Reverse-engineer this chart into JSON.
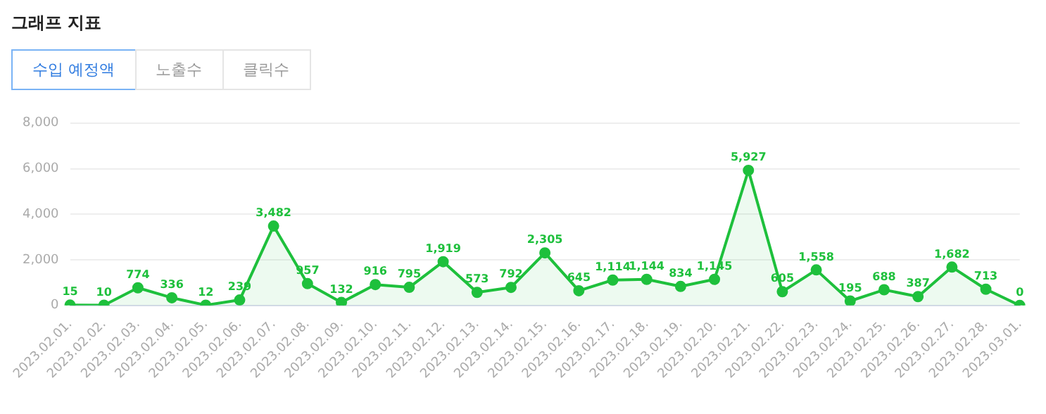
{
  "chart_data": {
    "type": "area",
    "title": "그래프 지표",
    "annotations": [
      "수입 예정액",
      "노출수",
      "클릭수"
    ],
    "categories": [
      "2023.02.01.",
      "2023.02.02.",
      "2023.02.03.",
      "2023.02.04.",
      "2023.02.05.",
      "2023.02.06.",
      "2023.02.07.",
      "2023.02.08.",
      "2023.02.09.",
      "2023.02.10.",
      "2023.02.11.",
      "2023.02.12.",
      "2023.02.13.",
      "2023.02.14.",
      "2023.02.15.",
      "2023.02.16.",
      "2023.02.17.",
      "2023.02.18.",
      "2023.02.19.",
      "2023.02.20.",
      "2023.02.21.",
      "2023.02.22.",
      "2023.02.23.",
      "2023.02.24.",
      "2023.02.25.",
      "2023.02.26.",
      "2023.02.27.",
      "2023.02.28.",
      "2023.03.01."
    ],
    "series": [
      {
        "color": "#1ec03c",
        "values": [
          15,
          10,
          774,
          336,
          12,
          239,
          3482,
          957,
          132,
          916,
          795,
          1919,
          573,
          792,
          2305,
          645,
          1114,
          1144,
          834,
          1145,
          5927,
          605,
          1558,
          195,
          688,
          387,
          1682,
          713,
          0
        ],
        "value_labels": [
          "15",
          "10",
          "774",
          "336",
          "12",
          "239",
          "3,482",
          "957",
          "132",
          "916",
          "795",
          "1,919",
          "573",
          "792",
          "2,305",
          "645",
          "1,114",
          "1,144",
          "834",
          "1,145",
          "5,927",
          "605",
          "1,558",
          "195",
          "688",
          "387",
          "1,682",
          "713",
          "0"
        ]
      }
    ],
    "ylim": [
      0,
      8000
    ],
    "yticks": [
      {
        "value": 0,
        "label": "0"
      },
      {
        "value": 2000,
        "label": "2,000"
      },
      {
        "value": 4000,
        "label": "4,000"
      },
      {
        "value": 6000,
        "label": "6,000"
      },
      {
        "value": 8000,
        "label": "8,000"
      }
    ],
    "grid": "y",
    "marker": "circle",
    "legend": false
  }
}
